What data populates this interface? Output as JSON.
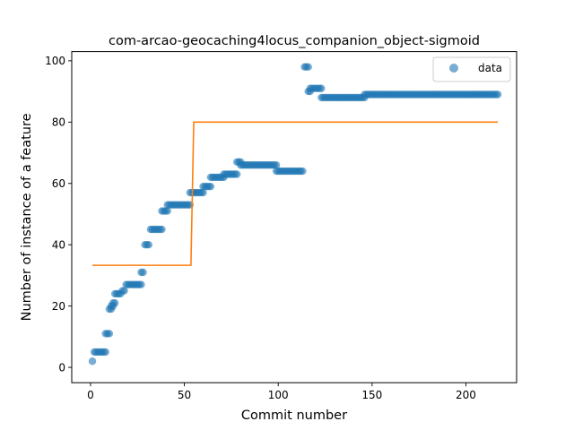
{
  "chart_data": {
    "type": "scatter",
    "title": "com-arcao-geocaching4locus_companion_object-sigmoid",
    "xlabel": "Commit number",
    "ylabel": "Number of instance of a feature",
    "xlim": [
      -10,
      227
    ],
    "ylim": [
      -5,
      103
    ],
    "xticks": [
      0,
      50,
      100,
      150,
      200
    ],
    "yticks": [
      0,
      20,
      40,
      60,
      80,
      100
    ],
    "grid": false,
    "legend_position": "top-right",
    "colors": {
      "data": "#1f77b4",
      "fit": "#ff7f0e"
    },
    "series": [
      {
        "name": "data",
        "kind": "scatter",
        "segments": [
          {
            "x_start": 1,
            "x_end": 1,
            "y": 2
          },
          {
            "x_start": 2,
            "x_end": 8,
            "y": 5
          },
          {
            "x_start": 8,
            "x_end": 10,
            "y": 11
          },
          {
            "x_start": 10,
            "x_end": 11,
            "y": 19
          },
          {
            "x_start": 11,
            "x_end": 12,
            "y": 20
          },
          {
            "x_start": 12,
            "x_end": 13,
            "y": 21
          },
          {
            "x_start": 13,
            "x_end": 16,
            "y": 24
          },
          {
            "x_start": 17,
            "x_end": 18,
            "y": 25
          },
          {
            "x_start": 19,
            "x_end": 27,
            "y": 27
          },
          {
            "x_start": 27,
            "x_end": 28,
            "y": 31
          },
          {
            "x_start": 29,
            "x_end": 31,
            "y": 40
          },
          {
            "x_start": 32,
            "x_end": 38,
            "y": 45
          },
          {
            "x_start": 38,
            "x_end": 41,
            "y": 51
          },
          {
            "x_start": 41,
            "x_end": 53,
            "y": 53
          },
          {
            "x_start": 53,
            "x_end": 60,
            "y": 57
          },
          {
            "x_start": 60,
            "x_end": 64,
            "y": 59
          },
          {
            "x_start": 64,
            "x_end": 71,
            "y": 62
          },
          {
            "x_start": 71,
            "x_end": 78,
            "y": 63
          },
          {
            "x_start": 78,
            "x_end": 80,
            "y": 67
          },
          {
            "x_start": 80,
            "x_end": 99,
            "y": 66
          },
          {
            "x_start": 99,
            "x_end": 113,
            "y": 64
          },
          {
            "x_start": 114,
            "x_end": 116,
            "y": 98
          },
          {
            "x_start": 116,
            "x_end": 117,
            "y": 90
          },
          {
            "x_start": 117,
            "x_end": 123,
            "y": 91
          },
          {
            "x_start": 123,
            "x_end": 146,
            "y": 88
          },
          {
            "x_start": 146,
            "x_end": 217,
            "y": 89
          }
        ]
      },
      {
        "kind": "line",
        "x": [
          1,
          53.5,
          55,
          217
        ],
        "y": [
          33.3,
          33.3,
          80,
          80
        ]
      }
    ]
  }
}
